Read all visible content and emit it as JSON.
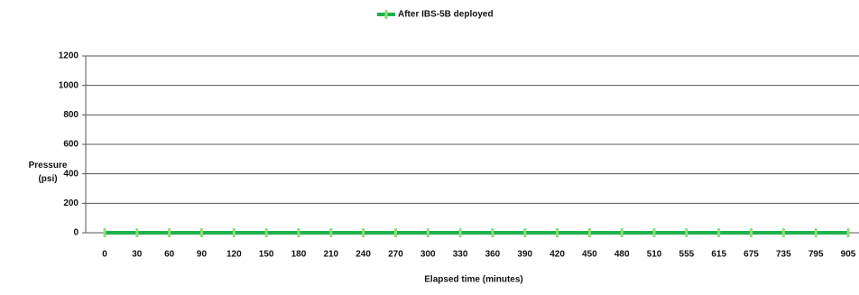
{
  "chart_data": {
    "type": "line",
    "x_label": "Elapsed time (minutes)",
    "y_label": "Pressure (psi)",
    "categories": [
      "0",
      "30",
      "60",
      "90",
      "120",
      "150",
      "180",
      "210",
      "240",
      "270",
      "300",
      "330",
      "360",
      "390",
      "420",
      "450",
      "480",
      "510",
      "555",
      "615",
      "675",
      "735",
      "795",
      "905"
    ],
    "series": [
      {
        "name": "After IBS-5B deployed",
        "color": "#1fb14a",
        "marker_color": "#8fdc7a",
        "values": [
          0,
          0,
          0,
          0,
          0,
          0,
          0,
          0,
          0,
          0,
          0,
          0,
          0,
          0,
          0,
          0,
          0,
          0,
          0,
          0,
          0,
          0,
          0,
          0
        ]
      }
    ],
    "ylim": [
      0,
      1200
    ],
    "yticks": [
      0,
      200,
      400,
      600,
      800,
      1000,
      1200
    ],
    "grid": true,
    "legend": "top"
  }
}
